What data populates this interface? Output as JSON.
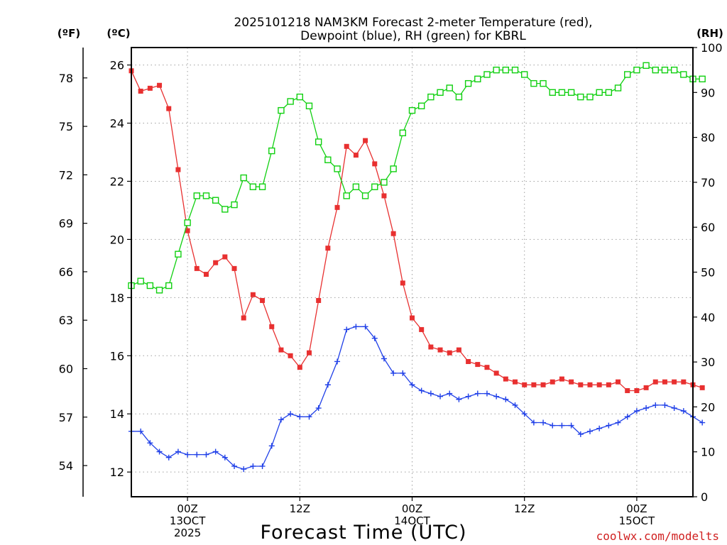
{
  "chart_data": {
    "type": "line",
    "title": [
      "2025101218 NAM3KM Forecast 2-meter Temperature (red),",
      "Dewpoint (blue), RH (green) for KBRL"
    ],
    "xlabel": "Forecast Time (UTC)",
    "ylabel_f": "(ºF)",
    "ylabel_c": "(ºC)",
    "ylabel_rh": "(RH)",
    "watermark": "coolwx.com/modelts",
    "xlim": [
      0,
      60
    ],
    "ylim_c": [
      11.15,
      26.6
    ],
    "ylim_rh": [
      0,
      100
    ],
    "x_ticks": [
      {
        "h": 6,
        "label": [
          "00Z",
          "13OCT",
          "2025"
        ]
      },
      {
        "h": 18,
        "label": [
          "12Z"
        ]
      },
      {
        "h": 30,
        "label": [
          "00Z",
          "14OCT"
        ]
      },
      {
        "h": 42,
        "label": [
          "12Z"
        ]
      },
      {
        "h": 54,
        "label": [
          "00Z",
          "15OCT"
        ]
      }
    ],
    "c_ticks": [
      "12",
      "14",
      "16",
      "18",
      "20",
      "22",
      "24",
      "26"
    ],
    "f_ticks": [
      "54",
      "57",
      "60",
      "63",
      "66",
      "69",
      "72",
      "75",
      "78"
    ],
    "rh_ticks": [
      "0",
      "10",
      "20",
      "30",
      "40",
      "50",
      "60",
      "70",
      "80",
      "90",
      "100"
    ],
    "series": [
      {
        "name": "Temperature",
        "color": "#e83030",
        "units": "C",
        "marker": "filled-square",
        "values": [
          25.8,
          25.1,
          25.2,
          25.3,
          24.5,
          22.4,
          20.3,
          19.0,
          18.8,
          19.2,
          19.4,
          19.0,
          17.3,
          18.1,
          17.9,
          17.0,
          16.2,
          16.0,
          15.6,
          16.1,
          17.9,
          19.7,
          21.1,
          23.2,
          22.9,
          23.4,
          22.6,
          21.5,
          20.2,
          18.5,
          17.3,
          16.9,
          16.3,
          16.2,
          16.1,
          16.2,
          15.8,
          15.7,
          15.6,
          15.4,
          15.2,
          15.1,
          15.0,
          15.0,
          15.0,
          15.1,
          15.2,
          15.1,
          15.0,
          15.0,
          15.0,
          15.0,
          15.1,
          14.8,
          14.8,
          14.9,
          15.1,
          15.1,
          15.1,
          15.1,
          15.0,
          14.9
        ]
      },
      {
        "name": "Dewpoint",
        "color": "#2040e8",
        "units": "C",
        "marker": "plus",
        "values": [
          13.4,
          13.4,
          13.0,
          12.7,
          12.5,
          12.7,
          12.6,
          12.6,
          12.6,
          12.7,
          12.5,
          12.2,
          12.1,
          12.2,
          12.2,
          12.9,
          13.8,
          14.0,
          13.9,
          13.9,
          14.2,
          15.0,
          15.8,
          16.9,
          17.0,
          17.0,
          16.6,
          15.9,
          15.4,
          15.4,
          15.0,
          14.8,
          14.7,
          14.6,
          14.7,
          14.5,
          14.6,
          14.7,
          14.7,
          14.6,
          14.5,
          14.3,
          14.0,
          13.7,
          13.7,
          13.6,
          13.6,
          13.6,
          13.3,
          13.4,
          13.5,
          13.6,
          13.7,
          13.9,
          14.1,
          14.2,
          14.3,
          14.3,
          14.2,
          14.1,
          13.9,
          13.7
        ]
      },
      {
        "name": "RH",
        "color": "#10d010",
        "units": "%",
        "marker": "open-square",
        "values": [
          47,
          48,
          47,
          46,
          47,
          54,
          61,
          67,
          67,
          66,
          64,
          65,
          71,
          69,
          69,
          77,
          86,
          88,
          89,
          87,
          79,
          75,
          73,
          67,
          69,
          67,
          69,
          70,
          73,
          81,
          86,
          87,
          89,
          90,
          91,
          89,
          92,
          93,
          94,
          95,
          95,
          95,
          94,
          92,
          92,
          90,
          90,
          90,
          89,
          89,
          90,
          90,
          91,
          94,
          95,
          96,
          95,
          95,
          95,
          94,
          93,
          93
        ]
      }
    ]
  }
}
